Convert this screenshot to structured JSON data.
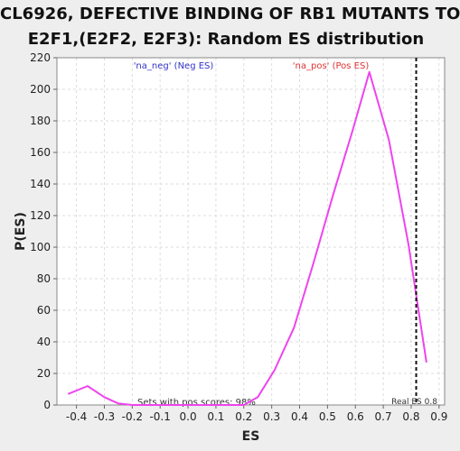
{
  "chart_data": {
    "type": "line",
    "title_lines": [
      "CL6926, DEFECTIVE BINDING OF RB1 MUTANTS TO",
      "E2F1,(E2F2, E2F3): Random ES distribution"
    ],
    "xlabel": "ES",
    "ylabel": "P(ES)",
    "xlim": [
      -0.47,
      0.92
    ],
    "ylim": [
      0,
      220
    ],
    "x_ticks": [
      -0.4,
      -0.3,
      -0.2,
      -0.1,
      0.0,
      0.1,
      0.2,
      0.3,
      0.4,
      0.5,
      0.6,
      0.7,
      0.8,
      0.9
    ],
    "x_tick_labels": [
      "-0.4",
      "-0.3",
      "-0.2",
      "-0.1",
      "0.0",
      "0.1",
      "0.2",
      "0.3",
      "0.4",
      "0.5",
      "0.6",
      "0.7",
      "0.8",
      "0.9"
    ],
    "y_ticks": [
      0,
      20,
      40,
      60,
      80,
      100,
      120,
      140,
      160,
      180,
      200,
      220
    ],
    "y_tick_labels": [
      "0",
      "20",
      "40",
      "60",
      "80",
      "100",
      "120",
      "140",
      "160",
      "180",
      "200",
      "220"
    ],
    "grid": true,
    "series": [
      {
        "color": "#ee44ee",
        "x": [
          -0.43,
          -0.36,
          -0.3,
          -0.25,
          -0.2,
          -0.1,
          0.0,
          0.1,
          0.2,
          0.25,
          0.31,
          0.38,
          0.45,
          0.52,
          0.59,
          0.65,
          0.72,
          0.79,
          0.855
        ],
        "y": [
          7,
          12,
          5,
          1,
          0,
          0,
          0,
          0,
          0,
          5,
          22,
          49,
          90,
          133,
          174,
          211,
          168,
          102,
          27
        ]
      }
    ],
    "reference_line": {
      "x": 0.818,
      "label": "Real ES 0.8",
      "color": "#111111"
    },
    "annotations": {
      "neg_label": "'na_neg' (Neg ES)",
      "neg_color": "#3333cc",
      "pos_label": "'na_pos' (Pos ES)",
      "pos_color": "#dd3333",
      "sets_text": "Sets with pos scores: 98%"
    }
  }
}
